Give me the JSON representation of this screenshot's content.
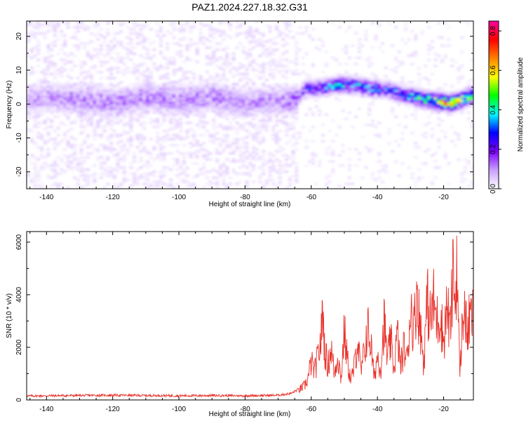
{
  "title": "PAZ1.2024.227.18.32.G31",
  "chart_data": [
    {
      "type": "heatmap",
      "xlabel": "Height of straight line (km)",
      "ylabel": "Frequency (Hz)",
      "xlim": [
        -146,
        -11
      ],
      "ylim": [
        -25,
        24.5
      ],
      "xticks": [
        -140,
        -120,
        -100,
        -80,
        -60,
        -40,
        -20
      ],
      "yticks": [
        -20,
        -10,
        0,
        10,
        20
      ],
      "colorbar": {
        "label": "Normalized spectral amplitude",
        "range": [
          0,
          0.85
        ],
        "ticks": [
          0.0,
          0.2,
          0.4,
          0.6,
          0.8
        ],
        "colors": [
          "#ffffff",
          "#c9a0ff",
          "#8000ff",
          "#0000ff",
          "#00ffff",
          "#00ff00",
          "#ffff00",
          "#ff8000",
          "#ff0000",
          "#ff00a0"
        ]
      },
      "ridge": {
        "x": [
          -146,
          -140,
          -130,
          -120,
          -110,
          -100,
          -90,
          -80,
          -70,
          -65,
          -62,
          -58,
          -55,
          -52,
          -50,
          -46,
          -42,
          -38,
          -34,
          -30,
          -26,
          -22,
          -18,
          -14,
          -11
        ],
        "y": [
          1,
          2,
          1,
          0,
          2,
          1,
          2,
          0,
          1,
          1,
          4.5,
          4.5,
          5,
          5.5,
          5.5,
          5,
          4.5,
          4,
          3,
          2,
          1,
          0.5,
          0,
          1.5,
          2.5
        ],
        "peak": [
          0.1,
          0.1,
          0.12,
          0.12,
          0.12,
          0.12,
          0.12,
          0.1,
          0.1,
          0.15,
          0.25,
          0.3,
          0.35,
          0.4,
          0.35,
          0.4,
          0.35,
          0.3,
          0.35,
          0.4,
          0.5,
          0.6,
          0.65,
          0.55,
          0.5
        ]
      }
    },
    {
      "type": "line",
      "xlabel": "Height of straight line (km)",
      "ylabel": "SNR (10 * v/v)",
      "xlim": [
        -146,
        -11
      ],
      "ylim": [
        0,
        6400
      ],
      "xticks": [
        -140,
        -120,
        -100,
        -80,
        -60,
        -40,
        -20
      ],
      "yticks": [
        0,
        2000,
        4000,
        6000
      ],
      "color": "#e8312a",
      "series": [
        {
          "x": [
            -146,
            -140,
            -130,
            -120,
            -110,
            -100,
            -90,
            -80,
            -70,
            -66,
            -64,
            -62,
            -61,
            -60,
            -59,
            -58,
            -57,
            -56.5,
            -56,
            -55,
            -54,
            -53,
            -52,
            -51,
            -50,
            -49,
            -48,
            -47,
            -46,
            -45,
            -44,
            -43,
            -42,
            -41,
            -40,
            -39,
            -38,
            -37,
            -36,
            -35,
            -34,
            -33,
            -32,
            -31,
            -30,
            -29,
            -28,
            -27.5,
            -27,
            -26,
            -25,
            -24,
            -23,
            -22,
            -21,
            -20,
            -19,
            -18,
            -17,
            -16.5,
            -16,
            -15.5,
            -15,
            -14,
            -13,
            -12,
            -11
          ],
          "y": [
            150,
            160,
            170,
            180,
            170,
            160,
            170,
            160,
            180,
            250,
            400,
            600,
            900,
            1600,
            1200,
            1800,
            2600,
            3950,
            2200,
            1400,
            2200,
            1100,
            1900,
            900,
            2900,
            1600,
            800,
            1400,
            2600,
            1100,
            2000,
            3050,
            2400,
            900,
            1900,
            1300,
            3300,
            1700,
            2500,
            1300,
            2800,
            1400,
            2200,
            1700,
            4000,
            3000,
            4800,
            3600,
            3100,
            1500,
            4200,
            3400,
            4100,
            3300,
            3700,
            2400,
            4000,
            2900,
            5700,
            3600,
            6300,
            2800,
            1200,
            4200,
            2800,
            3400,
            3500
          ]
        }
      ]
    }
  ]
}
